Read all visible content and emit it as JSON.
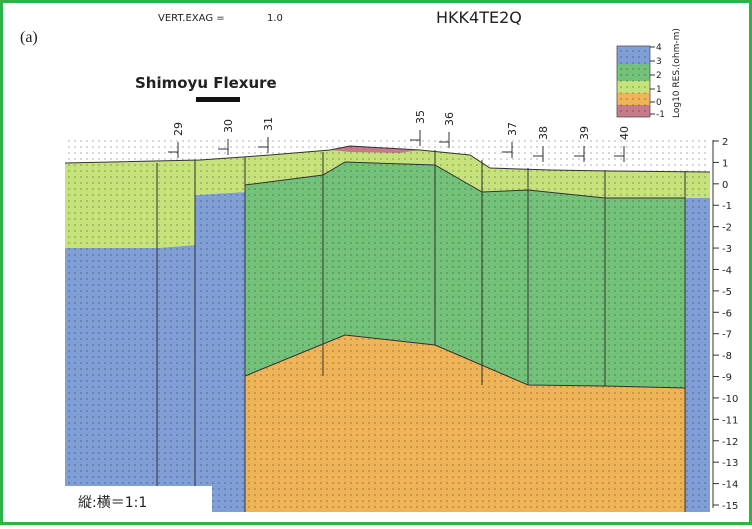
{
  "header": {
    "panel": "(a)",
    "exag_label": "VERT.EXAG =",
    "exag_value": "1.0",
    "line_id": "HKK4TE2Q"
  },
  "feature_label": "Shimoyu Flexure",
  "stations": [
    "29",
    "30",
    "31",
    "35",
    "36",
    "37",
    "38",
    "39",
    "40"
  ],
  "depth_axis": [
    "2",
    "1",
    "0",
    "-1",
    "-2",
    "-3",
    "-4",
    "-5",
    "-6",
    "-7",
    "-8",
    "-9",
    "-10",
    "-11",
    "-12",
    "-13",
    "-14",
    "-15"
  ],
  "legend": {
    "title": "Log10 RES.(ohm-m)",
    "labels": [
      "4",
      "3",
      "2",
      "1",
      "0",
      "-1"
    ]
  },
  "scale_note": "縦:横＝1:1"
}
